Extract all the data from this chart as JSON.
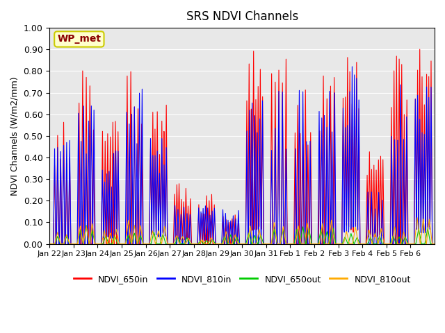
{
  "title": "SRS NDVI Channels",
  "ylabel": "NDVI Channels (W/m2/mm)",
  "annotation": "WP_met",
  "ylim": [
    0.0,
    1.0
  ],
  "yticks": [
    0.0,
    0.1,
    0.2,
    0.3,
    0.4,
    0.5,
    0.6,
    0.7,
    0.8,
    0.9,
    1.0
  ],
  "xtick_labels": [
    "Jan 22",
    "Jan 23",
    "Jan 24",
    "Jan 25",
    "Jan 26",
    "Jan 27",
    "Jan 28",
    "Jan 29",
    "Jan 30",
    "Jan 31",
    "Feb 1",
    "Feb 2",
    "Feb 3",
    "Feb 4",
    "Feb 5",
    "Feb 6"
  ],
  "n_days": 16,
  "colors": {
    "NDVI_650in": "#ff0000",
    "NDVI_810in": "#0000ff",
    "NDVI_650out": "#00cc00",
    "NDVI_810out": "#ffaa00"
  },
  "background_color": "#e8e8e8",
  "peaks_650in": [
    0.58,
    0.82,
    0.57,
    0.86,
    0.67,
    0.28,
    0.23,
    0.15,
    0.91,
    0.87,
    0.72,
    0.86,
    0.89,
    0.47,
    0.9,
    0.91
  ],
  "peaks_810in": [
    0.5,
    0.69,
    0.44,
    0.72,
    0.5,
    0.22,
    0.19,
    0.16,
    0.7,
    0.72,
    0.72,
    0.74,
    0.83,
    0.26,
    0.75,
    0.76
  ],
  "peaks_650out": [
    0.04,
    0.09,
    0.04,
    0.05,
    0.07,
    0.03,
    0.02,
    0.05,
    0.06,
    0.08,
    0.08,
    0.09,
    0.05,
    0.04,
    0.05,
    0.1
  ],
  "peaks_810out": [
    0.07,
    0.11,
    0.07,
    0.11,
    0.09,
    0.04,
    0.03,
    0.06,
    0.09,
    0.12,
    0.12,
    0.12,
    0.09,
    0.08,
    0.08,
    0.13
  ]
}
